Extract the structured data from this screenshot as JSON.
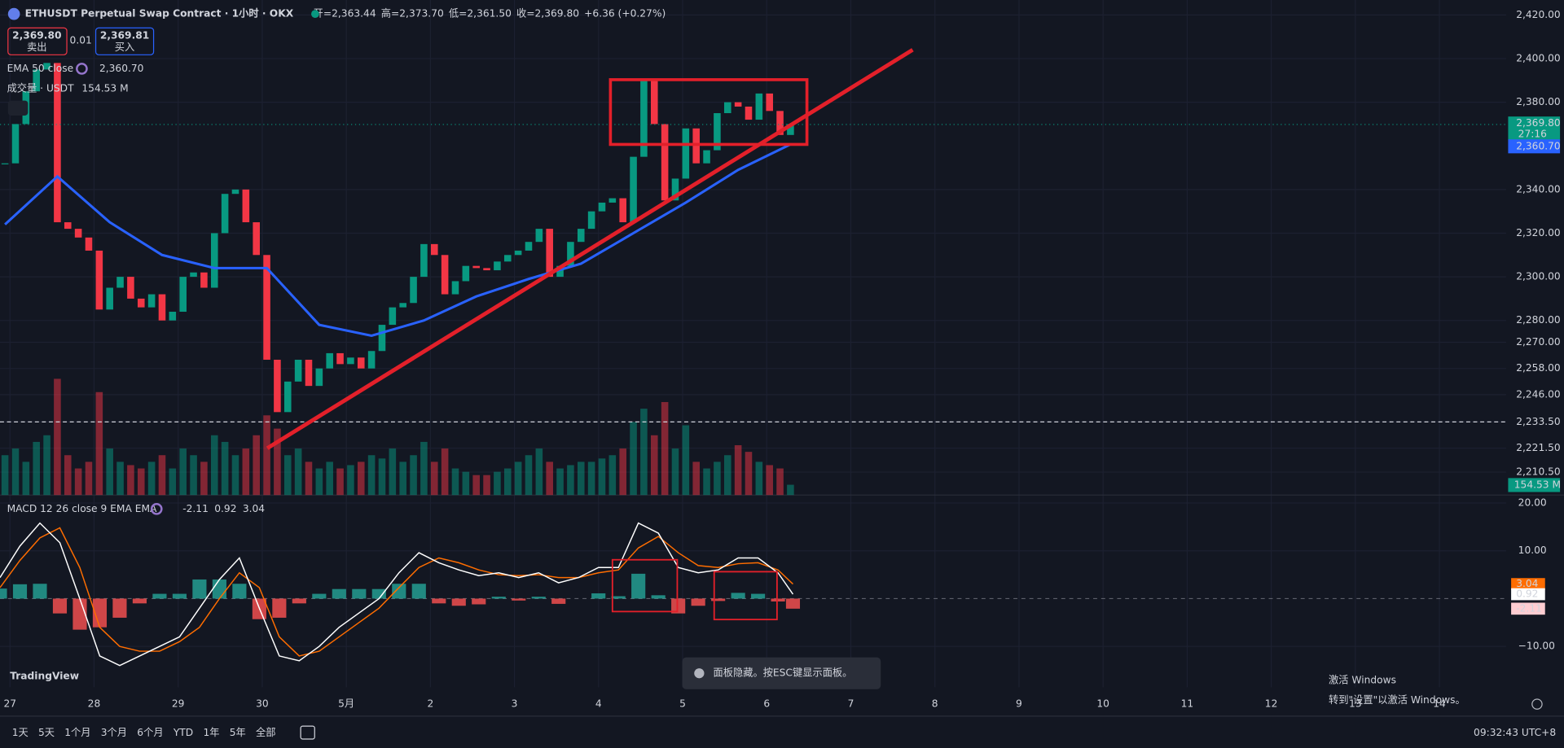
{
  "header": {
    "symbol": "ETHUSDT Perpetual Swap Contract · 1小时 · OKX",
    "ohlc": [
      {
        "label": "开=",
        "value": "2,363.44"
      },
      {
        "label": "高=",
        "value": "2,373.70"
      },
      {
        "label": "低=",
        "value": "2,361.50"
      },
      {
        "label": "收=",
        "value": "2,369.80"
      }
    ],
    "change": "+6.36 (+0.27%)",
    "sell": {
      "price": "2,369.80",
      "label": "卖出"
    },
    "spread": "0.01",
    "buy": {
      "price": "2,369.81",
      "label": "买入"
    }
  },
  "chart": {
    "colors": {
      "up": "#089981",
      "down": "#f23645",
      "ema": "#2962ff",
      "macd": "#ffffff",
      "signal": "#ff6d00",
      "annotation": "#e3202a"
    },
    "closes": [
      2352,
      2370,
      2385,
      2395,
      2398,
      2325,
      2322,
      2318,
      2312,
      2285,
      2295,
      2300,
      2290,
      2286,
      2292,
      2280,
      2284,
      2300,
      2302,
      2295,
      2320,
      2338,
      2340,
      2325,
      2310,
      2262,
      2238,
      2252,
      2262,
      2250,
      2258,
      2265,
      2260,
      2263,
      2258,
      2266,
      2278,
      2286,
      2288,
      2300,
      2315,
      2310,
      2292,
      2298,
      2305,
      2304,
      2303,
      2307,
      2310,
      2312,
      2316,
      2322,
      2300,
      2305,
      2316,
      2322,
      2330,
      2334,
      2336,
      2325,
      2355,
      2390,
      2370,
      2335,
      2345,
      2368,
      2352,
      2358,
      2375,
      2380,
      2378,
      2372,
      2384,
      2376,
      2365,
      2370
    ],
    "ema": {
      "label": "EMA 50 close",
      "value": "2,360.70",
      "values": [
        2324,
        2346,
        2325,
        2310,
        2304,
        2304,
        2278,
        2273,
        2280,
        2291,
        2299,
        2306,
        2320,
        2334,
        2349,
        2360.7
      ]
    },
    "volume": {
      "label": "成交量 · USDT",
      "value": "154.53 M",
      "values": [
        600,
        700,
        500,
        800,
        900,
        1750,
        600,
        400,
        500,
        1550,
        700,
        500,
        450,
        400,
        500,
        600,
        400,
        700,
        600,
        500,
        900,
        800,
        600,
        700,
        900,
        1200,
        1000,
        600,
        700,
        500,
        400,
        500,
        400,
        450,
        500,
        600,
        550,
        700,
        500,
        600,
        800,
        500,
        700,
        400,
        350,
        300,
        300,
        350,
        400,
        500,
        600,
        700,
        500,
        400,
        450,
        500,
        500,
        550,
        600,
        700,
        1100,
        1300,
        900,
        1400,
        700,
        1050,
        500,
        400,
        500,
        600,
        750,
        650,
        500,
        450,
        400,
        154.53
      ]
    },
    "price_ticks": [
      {
        "value": 2420,
        "label": "2,420.00"
      },
      {
        "value": 2400,
        "label": "2,400.00"
      },
      {
        "value": 2380,
        "label": "2,380.00"
      },
      {
        "value": 2340,
        "label": "2,340.00"
      },
      {
        "value": 2320,
        "label": "2,320.00"
      },
      {
        "value": 2300,
        "label": "2,300.00"
      },
      {
        "value": 2280,
        "label": "2,280.00"
      },
      {
        "value": 2270,
        "label": "2,270.00"
      },
      {
        "value": 2258,
        "label": "2,258.00"
      },
      {
        "value": 2246,
        "label": "2,246.00"
      },
      {
        "value": 2233.5,
        "label": "2,233.50"
      },
      {
        "value": 2221.5,
        "label": "2,221.50"
      },
      {
        "value": 2210.5,
        "label": "2,210.50"
      }
    ],
    "price_tags": {
      "last": {
        "value": 2369.8,
        "label": "2,369.80"
      },
      "countdown": "27:16",
      "ema": {
        "value": 2360.7,
        "label": "2,360.70"
      },
      "volume": "154.53 M"
    },
    "dates": [
      "27",
      "28",
      "29",
      "30",
      "5月",
      "2",
      "3",
      "4",
      "5",
      "6",
      "7",
      "8",
      "9",
      "10",
      "11",
      "12",
      "13",
      "14"
    ],
    "macd": {
      "label": "MACD 12 26 close 9 EMA EMA",
      "hist_value": "-2.11",
      "macd_value": "0.92",
      "signal_value": "3.04",
      "ticks": [
        {
          "value": 20,
          "label": "20.00"
        },
        {
          "value": 10,
          "label": "10.00"
        },
        {
          "value": -10,
          "label": "−10.00"
        }
      ],
      "macd": [
        4.4,
        11,
        15.8,
        11.7,
        0,
        -12,
        -14,
        -12,
        -10,
        -8,
        -2,
        4,
        8.5,
        -2,
        -12,
        -13,
        -10,
        -6,
        -3,
        0,
        5.4,
        9.6,
        7.5,
        6,
        4.8,
        5.4,
        4.4,
        5.4,
        3.3,
        4.4,
        6.5,
        6.5,
        15.8,
        13.7,
        6.5,
        5.4,
        6,
        8.5,
        8.5,
        5.4,
        0.92
      ],
      "signal": [
        2.3,
        8,
        12.7,
        14.8,
        6.5,
        -6,
        -10,
        -11,
        -11,
        -9,
        -6,
        0,
        5.4,
        2.3,
        -8,
        -12,
        -11,
        -8,
        -5,
        -2,
        2.3,
        6.5,
        8.5,
        7.5,
        6,
        5,
        4.8,
        5,
        4.4,
        4.4,
        5.4,
        6,
        10.6,
        13,
        9.6,
        6.9,
        6.5,
        7.3,
        7.5,
        6,
        3.04
      ],
      "hist": [
        2.1,
        3,
        3.1,
        -3.1,
        -6.5,
        -6,
        -4,
        -1,
        1,
        1,
        4,
        4,
        3.1,
        -4.3,
        -4,
        -1,
        1,
        2,
        2,
        2,
        3.1,
        3.1,
        -1,
        -1.5,
        -1.2,
        0.4,
        -0.4,
        0.4,
        -1.1,
        0,
        1.1,
        0.5,
        5.2,
        0.7,
        -3.1,
        -1.5,
        -0.5,
        1.2,
        1,
        -0.6,
        -2.11
      ],
      "tags": {
        "signal": {
          "value": 3.04,
          "label": "3.04"
        },
        "macd": {
          "value": 0.92,
          "label": "0.92"
        },
        "hist": {
          "value": -2.11,
          "label": "-2.11"
        }
      }
    }
  },
  "toolbar": {
    "ranges": [
      "1天",
      "5天",
      "1个月",
      "3个月",
      "6个月",
      "YTD",
      "1年",
      "5年",
      "全部"
    ],
    "time": "09:32:43 UTC+8"
  },
  "toast": "面板隐藏。按ESC键显示面板。",
  "logo": "TradingView",
  "watermark": {
    "title": "激活 Windows",
    "subtitle": "转到\"设置\"以激活 Windows。"
  }
}
